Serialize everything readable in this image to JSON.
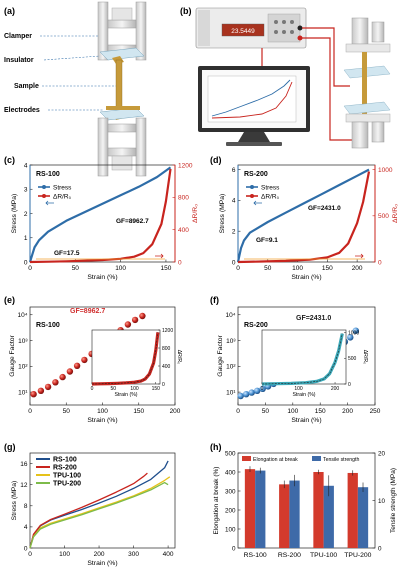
{
  "panel_a": {
    "letter": "(a)",
    "labels": [
      "Clamper",
      "Insulator",
      "Sample",
      "Electrodes"
    ]
  },
  "panel_b": {
    "letter": "(b)",
    "meter_display": "23.5449"
  },
  "colors": {
    "stress": "#2e6da8",
    "resistance": "#c8241e",
    "gf_red": "#d03030",
    "blue_marker": "#4a90d0",
    "teal": "#3aa8b8",
    "rs100": "#1f4e8c",
    "rs200": "#c8241e",
    "tpu100": "#e6c21a",
    "tpu200": "#7dbb4a",
    "bar_red": "#d33a2c",
    "bar_blue": "#3e6aa8",
    "insulator": "#d1e6f0",
    "sample": "#c69a3a"
  },
  "chart_data": [
    {
      "id": "c",
      "type": "line",
      "letter": "(c)",
      "sample": "RS-100",
      "xlabel": "Strain (%)",
      "ylabel": "Stress (MPa)",
      "y2label": "ΔR/R₀",
      "xlim": [
        0,
        160
      ],
      "ylim": [
        0,
        4
      ],
      "y2lim": [
        0,
        1200
      ],
      "xticks": [
        0,
        50,
        100,
        150
      ],
      "yticks": [
        0,
        1,
        2,
        3,
        4
      ],
      "y2ticks": [
        0,
        400,
        800,
        1200
      ],
      "legend": [
        "Stress",
        "ΔR/R₀"
      ],
      "annotations": [
        "GF=8962.7",
        "GF=17.5"
      ],
      "series": [
        {
          "name": "Stress",
          "axis": "left",
          "x": [
            0,
            5,
            10,
            20,
            40,
            60,
            80,
            100,
            120,
            140,
            155
          ],
          "y": [
            0,
            0.6,
            0.9,
            1.25,
            1.7,
            2.05,
            2.4,
            2.75,
            3.1,
            3.5,
            3.9
          ]
        },
        {
          "name": "ΔR/R₀",
          "axis": "right",
          "x": [
            0,
            20,
            40,
            60,
            80,
            100,
            115,
            125,
            135,
            145,
            150,
            155
          ],
          "y": [
            0,
            4,
            9,
            16,
            25,
            40,
            65,
            110,
            220,
            470,
            750,
            1150
          ]
        }
      ]
    },
    {
      "id": "d",
      "type": "line",
      "letter": "(d)",
      "sample": "RS-200",
      "xlabel": "Strain (%)",
      "ylabel": "Stress (MPa)",
      "y2label": "ΔR/R₀",
      "xlim": [
        0,
        230
      ],
      "ylim": [
        0,
        6.3
      ],
      "y2lim": [
        0,
        1050
      ],
      "xticks": [
        0,
        50,
        100,
        150,
        200
      ],
      "yticks": [
        0,
        2,
        4,
        6
      ],
      "y2ticks": [
        0,
        500,
        1000
      ],
      "legend": [
        "Stress",
        "ΔR/R₀"
      ],
      "annotations": [
        "GF=2431.0",
        "GF=9.1"
      ],
      "series": [
        {
          "name": "Stress",
          "axis": "left",
          "x": [
            0,
            5,
            10,
            20,
            50,
            80,
            110,
            140,
            170,
            200,
            220
          ],
          "y": [
            0,
            0.9,
            1.4,
            1.9,
            2.6,
            3.2,
            3.8,
            4.4,
            5.0,
            5.6,
            6.0
          ]
        },
        {
          "name": "ΔR/R₀",
          "axis": "right",
          "x": [
            0,
            40,
            80,
            120,
            150,
            170,
            185,
            200,
            210,
            220
          ],
          "y": [
            0,
            5,
            12,
            25,
            50,
            100,
            200,
            420,
            650,
            980
          ]
        }
      ]
    },
    {
      "id": "e",
      "type": "scatter",
      "letter": "(e)",
      "sample": "RS-100",
      "xlabel": "Strain (%)",
      "ylabel": "Gauge Factor",
      "xlim": [
        0,
        200
      ],
      "ylim": [
        0.5,
        4.3
      ],
      "yscale": "log",
      "xticks": [
        0,
        50,
        100,
        150,
        200
      ],
      "yticks": [
        1,
        2,
        3,
        4
      ],
      "ytick_labels": [
        "10¹",
        "10²",
        "10³",
        "10⁴"
      ],
      "annotations": [
        "GF=8962.7"
      ],
      "series": [
        {
          "name": "GF",
          "x": [
            5,
            15,
            25,
            35,
            45,
            55,
            65,
            75,
            85,
            95,
            105,
            115,
            125,
            135,
            145,
            155
          ],
          "y": [
            0.92,
            1.05,
            1.2,
            1.38,
            1.58,
            1.8,
            2.02,
            2.25,
            2.48,
            2.72,
            2.95,
            3.18,
            3.4,
            3.62,
            3.8,
            3.95
          ]
        }
      ],
      "inset": {
        "xlabel": "Strain (%)",
        "ylabel": "ΔR/R₀",
        "xlim": [
          0,
          160
        ],
        "ylim": [
          0,
          1200
        ],
        "xticks": [
          0,
          50,
          100,
          150
        ],
        "yticks": [
          0,
          400,
          800,
          1200
        ],
        "x": [
          0,
          20,
          40,
          60,
          80,
          100,
          115,
          125,
          135,
          145,
          150,
          155
        ],
        "y": [
          0,
          4,
          9,
          16,
          25,
          40,
          65,
          110,
          220,
          470,
          750,
          1150
        ]
      }
    },
    {
      "id": "f",
      "type": "scatter",
      "letter": "(f)",
      "sample": "RS-200",
      "xlabel": "Strain (%)",
      "ylabel": "Gauge Factor",
      "xlim": [
        0,
        250
      ],
      "ylim": [
        0.5,
        4.3
      ],
      "yscale": "log",
      "xticks": [
        0,
        50,
        100,
        150,
        200,
        250
      ],
      "yticks": [
        1,
        2,
        3,
        4
      ],
      "ytick_labels": [
        "10¹",
        "10²",
        "10³",
        "10⁴"
      ],
      "annotations": [
        "GF=2431.0"
      ],
      "series": [
        {
          "name": "GF",
          "x": [
            5,
            15,
            25,
            35,
            45,
            55,
            65,
            75,
            85,
            95,
            105,
            115,
            125,
            135,
            145,
            155,
            165,
            175,
            185,
            195,
            205,
            215
          ],
          "y": [
            0.85,
            0.92,
            0.98,
            1.05,
            1.13,
            1.22,
            1.32,
            1.42,
            1.53,
            1.64,
            1.76,
            1.88,
            2.0,
            2.12,
            2.25,
            2.38,
            2.52,
            2.66,
            2.8,
            2.95,
            3.12,
            3.38
          ]
        }
      ],
      "inset": {
        "xlabel": "Strain (%)",
        "ylabel": "ΔR/R₀",
        "xlim": [
          0,
          230
        ],
        "ylim": [
          0,
          1050
        ],
        "xticks": [
          0,
          100,
          200
        ],
        "yticks": [
          0,
          500,
          1000
        ],
        "x": [
          0,
          40,
          80,
          120,
          150,
          170,
          185,
          200,
          210,
          220
        ],
        "y": [
          0,
          5,
          12,
          25,
          50,
          100,
          200,
          420,
          650,
          980
        ]
      }
    },
    {
      "id": "g",
      "type": "line",
      "letter": "(g)",
      "xlabel": "Strain (%)",
      "ylabel": "Stress (MPa)",
      "xlim": [
        0,
        420
      ],
      "ylim": [
        0,
        18
      ],
      "xticks": [
        0,
        100,
        200,
        300,
        400
      ],
      "yticks": [
        0,
        4,
        8,
        12,
        16
      ],
      "legend": [
        "RS-100",
        "RS-200",
        "TPU-100",
        "TPU-200"
      ],
      "series": [
        {
          "name": "RS-100",
          "x": [
            0,
            10,
            30,
            60,
            100,
            150,
            200,
            250,
            300,
            350,
            390,
            400
          ],
          "y": [
            0,
            2.5,
            4.2,
            5.3,
            6.2,
            7.3,
            8.5,
            9.8,
            11.3,
            13.0,
            15.2,
            16.5
          ]
        },
        {
          "name": "RS-200",
          "x": [
            0,
            10,
            30,
            60,
            100,
            150,
            200,
            250,
            300,
            330,
            340
          ],
          "y": [
            0,
            2.6,
            4.3,
            5.4,
            6.4,
            7.7,
            9.1,
            10.6,
            12.2,
            13.6,
            14.2
          ]
        },
        {
          "name": "TPU-100",
          "x": [
            0,
            10,
            30,
            60,
            100,
            150,
            200,
            250,
            300,
            350,
            390,
            405
          ],
          "y": [
            0,
            2.2,
            3.8,
            4.7,
            5.5,
            6.5,
            7.6,
            8.7,
            9.9,
            11.3,
            12.8,
            13.5
          ]
        },
        {
          "name": "TPU-200",
          "x": [
            0,
            10,
            30,
            60,
            100,
            150,
            200,
            250,
            300,
            350,
            390,
            400
          ],
          "y": [
            0,
            2.1,
            3.6,
            4.5,
            5.3,
            6.3,
            7.4,
            8.5,
            9.7,
            11.0,
            12.4,
            12.0
          ]
        }
      ]
    },
    {
      "id": "h",
      "type": "bar",
      "letter": "(h)",
      "categories": [
        "RS-100",
        "RS-200",
        "TPU-100",
        "TPU-200"
      ],
      "ylabel": "Elongation at break (%)",
      "y2label": "Tensile strength (MPa)",
      "ylim": [
        0,
        500
      ],
      "y2lim": [
        0,
        20
      ],
      "yticks": [
        0,
        100,
        200,
        300,
        400,
        500
      ],
      "y2ticks": [
        0,
        10,
        20
      ],
      "legend": [
        "Elongation at break",
        "Tensile strength"
      ],
      "series": [
        {
          "name": "Elongation at break",
          "axis": "left",
          "values": [
            415,
            335,
            400,
            395
          ],
          "errors": [
            15,
            20,
            12,
            14
          ]
        },
        {
          "name": "Tensile strength",
          "axis": "right",
          "values": [
            16.3,
            14.2,
            13.1,
            12.8
          ],
          "errors": [
            0.6,
            1.2,
            2.2,
            1.0
          ]
        }
      ]
    }
  ]
}
